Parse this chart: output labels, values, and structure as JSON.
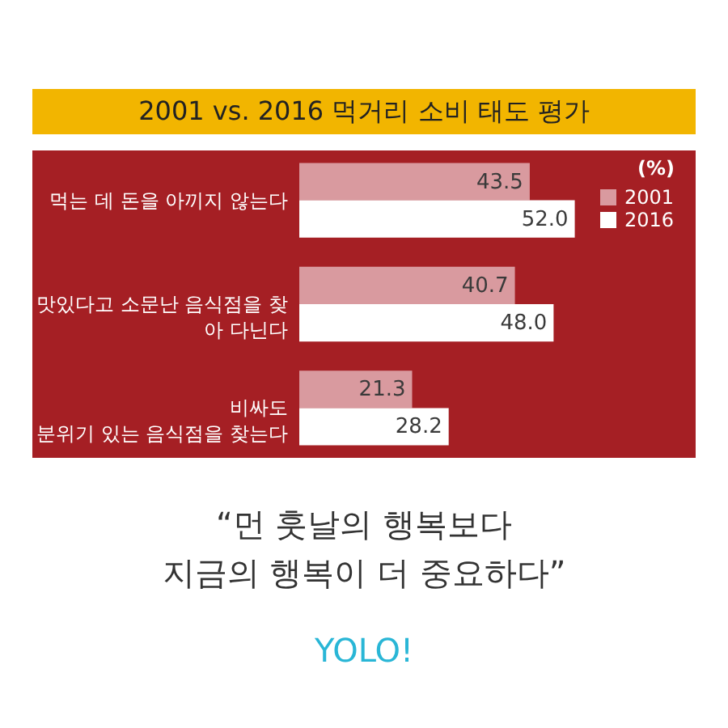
{
  "chart_data": {
    "type": "bar",
    "orientation": "horizontal",
    "title": "2001 vs. 2016 먹거리 소비 태도 평가",
    "categories": [
      "먹는 데 돈을 아끼지 않는다",
      "맛있다고 소문난 음식점을 찾\n아 다닌다",
      "비싸도\n분위기 있는 음식점을 찾는다"
    ],
    "series": [
      {
        "name": "2001",
        "color": "#d99a9f",
        "values": [
          43.5,
          40.7,
          21.3
        ],
        "value_labels": [
          "43.5",
          "40.7",
          "21.3"
        ]
      },
      {
        "name": "2016",
        "color": "#ffffff",
        "values": [
          52.0,
          48.0,
          28.2
        ],
        "value_labels": [
          "52.0",
          "48.0",
          "28.2"
        ]
      }
    ],
    "legend": "top right",
    "legend_title": "(%)",
    "grid": false,
    "annotations": [
      "“먼 훗날의 행복보다\n지금의 행복이 더 중요하다”",
      "YOLO!"
    ]
  }
}
